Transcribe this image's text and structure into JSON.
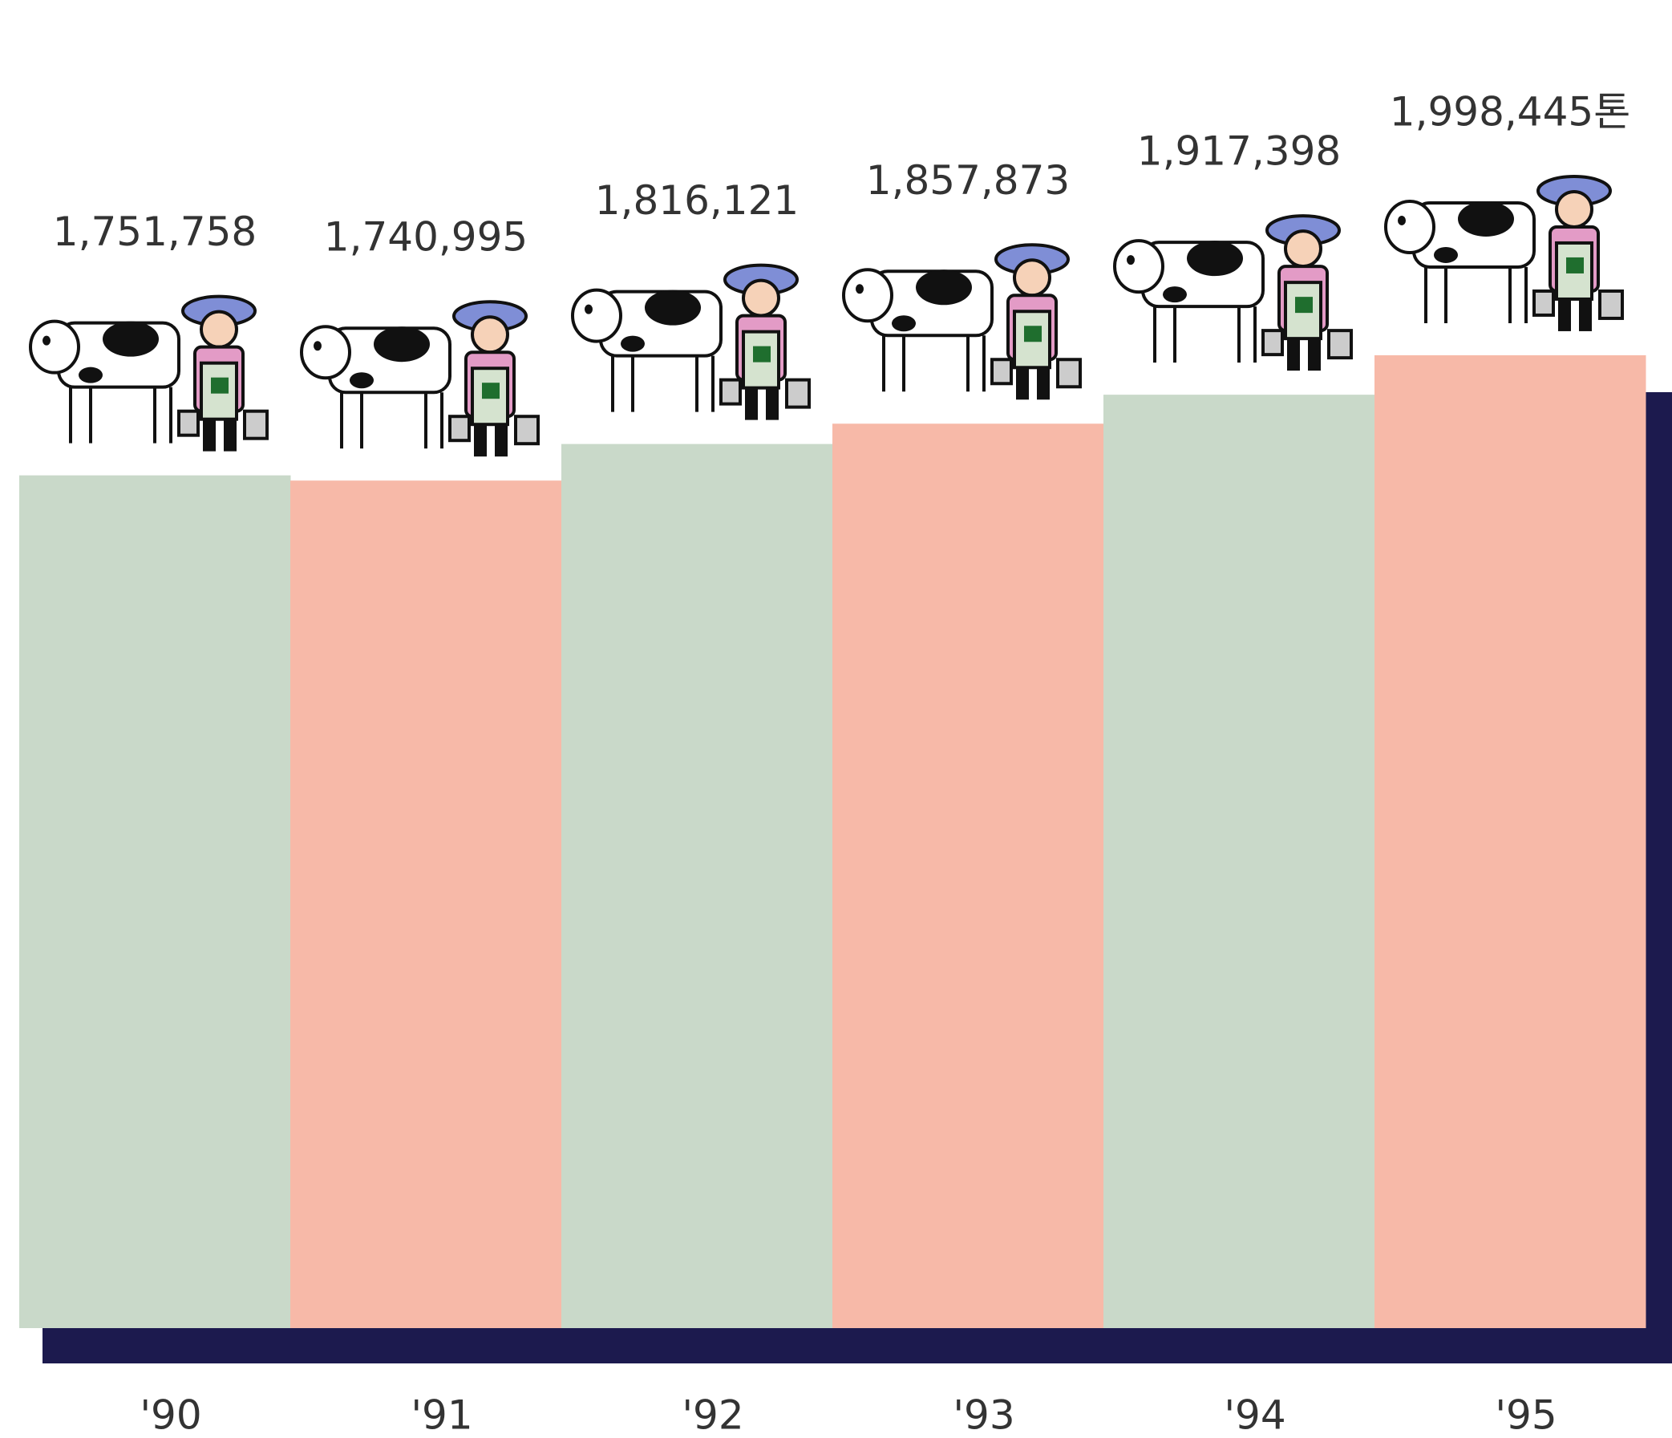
{
  "chart_data": {
    "type": "bar",
    "categories": [
      "'90",
      "'91",
      "'92",
      "'93",
      "'94",
      "'95"
    ],
    "values": [
      1751758,
      1740995,
      1816121,
      1857873,
      1917398,
      1998445
    ],
    "value_labels": [
      "1,751,758",
      "1,740,995",
      "1,816,121",
      "1,857,873",
      "1,917,398",
      "1,998,445톤"
    ],
    "colors": [
      "#c9d9c9",
      "#f7b9a8",
      "#c9d9c9",
      "#f7b9a8",
      "#c9d9c9",
      "#f7b9a8"
    ],
    "ylim": [
      0,
      2000000
    ]
  }
}
